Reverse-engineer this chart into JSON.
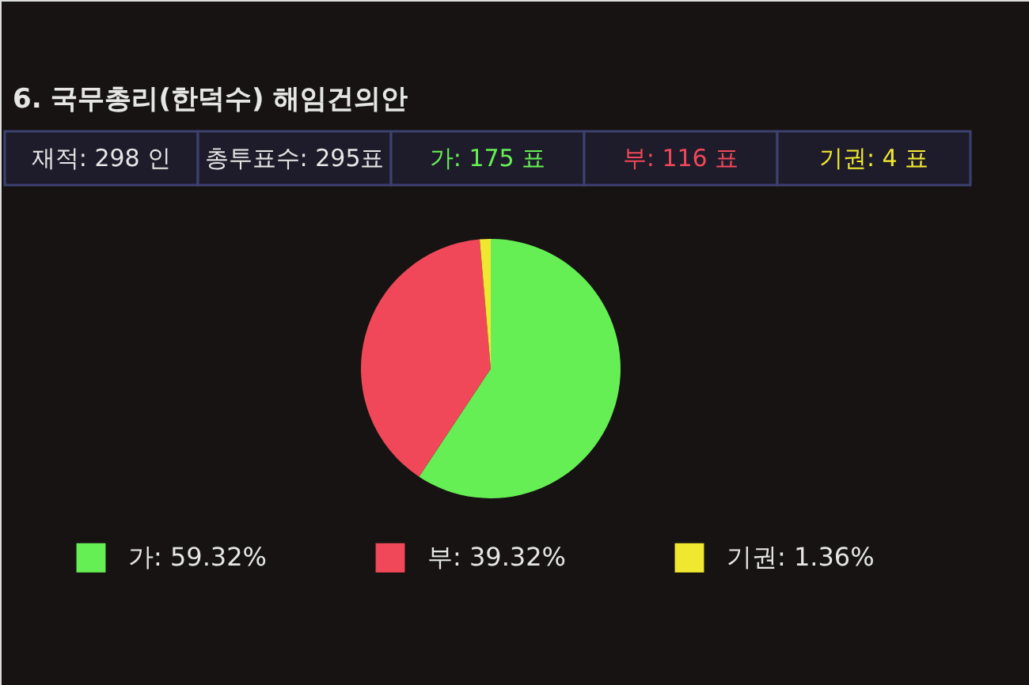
{
  "chart_data": {
    "type": "pie",
    "title": "6. 국무총리(한덕수) 해임건의안",
    "annotations": [
      "재적: 298 인",
      "총투표수: 295표",
      "가: 175 표",
      "부: 116 표",
      "기권: 4 표"
    ],
    "categories": [
      "가: 59.32%",
      "부: 39.32%",
      "기권: 1.36%"
    ],
    "values": [
      59.32,
      39.32,
      1.36
    ],
    "colors": [
      "#66ee55",
      "#f04858",
      "#f0e830"
    ],
    "legend": "bottom"
  }
}
